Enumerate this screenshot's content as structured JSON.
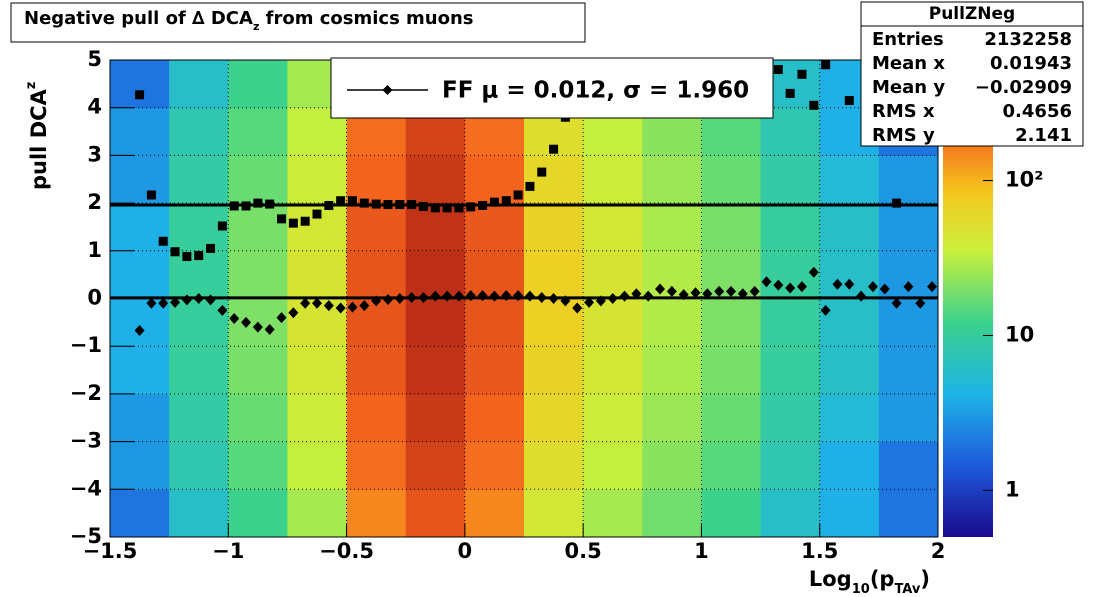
{
  "chart_data": {
    "type": "heatmap-profile",
    "title": {
      "text": "Negative pull of ∆ DCA",
      "sub": "z",
      "rest": " from cosmics muons"
    },
    "y_label": {
      "text": "pull DCA",
      "sub": "z"
    },
    "x_label": {
      "text": "Log",
      "sub": "10",
      "mid": "(p",
      "sub2": "TAv",
      "end": ")"
    },
    "xlim": [
      -1.5,
      2
    ],
    "ylim": [
      -5,
      5
    ],
    "zlim": [
      0.5,
      600
    ],
    "log_z": true,
    "grid": true,
    "xticks": [
      {
        "value": -1.5,
        "label": "−1.5"
      },
      {
        "value": -1,
        "label": "−1"
      },
      {
        "value": -0.5,
        "label": "−0.5"
      },
      0,
      0.5,
      1,
      1.5,
      2
    ],
    "yticks": [
      {
        "value": -5,
        "label": "−5"
      },
      {
        "value": -4,
        "label": "−4"
      },
      {
        "value": -3,
        "label": "−3"
      },
      {
        "value": -2,
        "label": "−2"
      },
      {
        "value": -1,
        "label": "−1"
      },
      0,
      1,
      2,
      3,
      4,
      5
    ],
    "zticks": [
      1,
      10,
      {
        "value": 100,
        "label": "10²"
      }
    ],
    "heatmap": {
      "xbins": [
        -1.5,
        -1.25,
        -1,
        -0.75,
        -0.5,
        -0.25,
        0,
        0.25,
        0.5,
        0.75,
        1,
        1.25,
        1.5,
        1.75,
        2
      ],
      "ybins": [
        -5,
        -4,
        -3,
        -2,
        -1,
        0,
        1,
        2,
        3,
        4,
        5
      ],
      "counts": [
        [
          2,
          3,
          3,
          4,
          4,
          4,
          4,
          3,
          3,
          2
        ],
        [
          6,
          8,
          9,
          10,
          10,
          10,
          10,
          9,
          8,
          6
        ],
        [
          12,
          15,
          17,
          19,
          20,
          20,
          19,
          17,
          15,
          12
        ],
        [
          27,
          34,
          38,
          43,
          45,
          45,
          43,
          38,
          34,
          27
        ],
        [
          150,
          190,
          210,
          240,
          250,
          250,
          240,
          210,
          190,
          150
        ],
        [
          250,
          320,
          360,
          400,
          420,
          420,
          400,
          360,
          320,
          250
        ],
        [
          150,
          190,
          210,
          240,
          250,
          250,
          240,
          210,
          190,
          150
        ],
        [
          42,
          52,
          60,
          66,
          70,
          70,
          66,
          60,
          52,
          42
        ],
        [
          27,
          34,
          38,
          43,
          45,
          45,
          43,
          38,
          34,
          27
        ],
        [
          18,
          22,
          25,
          28,
          30,
          30,
          28,
          25,
          22,
          18
        ],
        [
          12,
          15,
          17,
          19,
          20,
          20,
          19,
          17,
          15,
          12
        ],
        [
          6,
          8,
          9,
          10,
          10,
          10,
          10,
          9,
          8,
          6
        ],
        [
          4,
          4,
          5,
          6,
          6,
          6,
          6,
          5,
          4,
          4
        ],
        [
          2,
          2,
          3,
          3,
          3,
          3,
          3,
          3,
          2,
          2
        ]
      ]
    },
    "x": [
      -1.375,
      -1.325,
      -1.275,
      -1.225,
      -1.175,
      -1.125,
      -1.075,
      -1.025,
      -0.975,
      -0.925,
      -0.875,
      -0.825,
      -0.775,
      -0.725,
      -0.675,
      -0.625,
      -0.575,
      -0.525,
      -0.475,
      -0.425,
      -0.375,
      -0.325,
      -0.275,
      -0.225,
      -0.175,
      -0.125,
      -0.075,
      -0.025,
      0.025,
      0.075,
      0.125,
      0.175,
      0.225,
      0.275,
      0.325,
      0.375,
      0.425,
      0.475,
      0.525,
      0.575,
      0.625,
      0.675,
      0.725,
      0.775,
      0.825,
      0.875,
      0.925,
      0.975,
      1.025,
      1.075,
      1.125,
      1.175,
      1.225,
      1.275,
      1.325,
      1.375,
      1.425,
      1.475,
      1.525,
      1.575,
      1.625,
      1.675,
      1.725,
      1.775,
      1.825,
      1.875,
      1.925,
      1.975
    ],
    "series": [
      {
        "marker": "square",
        "color": "#000000",
        "values": [
          4.27,
          2.17,
          1.2,
          0.98,
          0.88,
          0.9,
          1.05,
          1.52,
          1.94,
          1.94,
          2.0,
          1.98,
          1.67,
          1.58,
          1.62,
          1.77,
          1.95,
          2.05,
          2.05,
          2.0,
          1.98,
          1.97,
          1.97,
          1.97,
          1.93,
          1.9,
          1.9,
          1.9,
          1.92,
          1.95,
          2.02,
          2.05,
          2.17,
          2.35,
          2.65,
          3.13,
          3.8,
          null,
          null,
          null,
          null,
          null,
          null,
          null,
          null,
          null,
          null,
          null,
          null,
          null,
          null,
          null,
          null,
          null,
          4.8,
          4.3,
          4.7,
          4.05,
          4.9,
          null,
          4.15,
          null,
          null,
          null,
          2.0,
          null,
          null,
          null
        ]
      },
      {
        "marker": "diamond",
        "color": "#000000",
        "values": [
          -0.67,
          -0.1,
          -0.1,
          -0.08,
          -0.03,
          0.0,
          -0.03,
          -0.25,
          -0.42,
          -0.5,
          -0.6,
          -0.65,
          -0.4,
          -0.3,
          -0.1,
          -0.1,
          -0.15,
          -0.2,
          -0.18,
          -0.15,
          -0.05,
          -0.02,
          0.0,
          0.02,
          0.02,
          0.05,
          0.05,
          0.05,
          0.06,
          0.06,
          0.05,
          0.06,
          0.06,
          0.05,
          0.02,
          0.0,
          -0.05,
          -0.2,
          -0.08,
          -0.05,
          0.0,
          0.05,
          0.1,
          0.05,
          0.2,
          0.15,
          0.08,
          0.12,
          0.1,
          0.15,
          0.15,
          0.1,
          0.15,
          0.35,
          0.28,
          0.22,
          0.25,
          0.55,
          -0.25,
          0.3,
          0.3,
          0.05,
          0.25,
          0.2,
          -0.1,
          0.25,
          -0.1,
          0.25
        ]
      }
    ],
    "fit": {
      "label": "FF μ =  0.012, σ =   1.960",
      "mean": 0.012,
      "sigma": 1.96
    },
    "stats": {
      "title": "PullZNeg",
      "rows": [
        [
          "Entries",
          "2132258"
        ],
        [
          "Mean x",
          "0.01943"
        ],
        [
          "Mean y",
          "−0.02909"
        ],
        [
          "RMS x",
          "0.4656"
        ],
        [
          "RMS y",
          "2.141"
        ]
      ]
    }
  }
}
